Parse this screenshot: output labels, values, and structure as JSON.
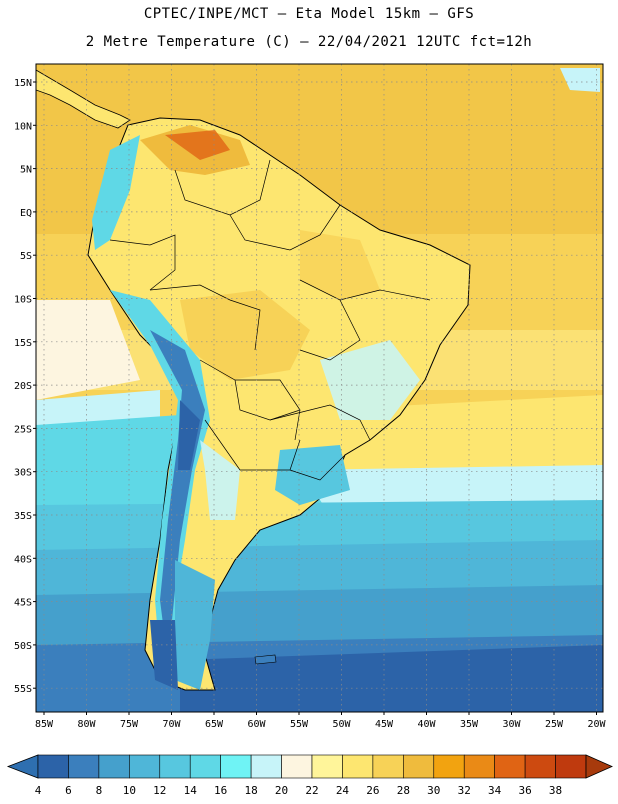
{
  "header": {
    "line1": "CPTEC/INPE/MCT –  Eta Model 15km – GFS",
    "line2": "2 Metre Temperature (C) – 22/04/2021 12UTC fct=12h"
  },
  "axes": {
    "lat_labels": [
      "15N",
      "10N",
      "5N",
      "EQ",
      "5S",
      "10S",
      "15S",
      "20S",
      "25S",
      "30S",
      "35S",
      "40S",
      "45S",
      "50S",
      "55S"
    ],
    "lon_labels": [
      "85W",
      "80W",
      "75W",
      "70W",
      "65W",
      "60W",
      "55W",
      "50W",
      "45W",
      "40W",
      "35W",
      "30W",
      "25W",
      "20W"
    ]
  },
  "colorbar": {
    "ticks": [
      "4",
      "6",
      "8",
      "10",
      "12",
      "14",
      "16",
      "18",
      "20",
      "22",
      "24",
      "26",
      "28",
      "30",
      "32",
      "34",
      "36",
      "38"
    ],
    "colors": [
      "#2c63a8",
      "#3b7fbd",
      "#45a0cc",
      "#4fb6d8",
      "#57c7df",
      "#5fd8e6",
      "#6ff3f5",
      "#c7f4f9",
      "#fdf5e0",
      "#fff59a",
      "#fde670",
      "#f7d257",
      "#efbb3d",
      "#f2a310",
      "#ea8a16",
      "#e06414",
      "#cd4a10",
      "#bf3a0e"
    ],
    "left_arrow_color": "#2e6fb0",
    "right_arrow_color": "#a73a0c"
  },
  "palette": {
    "ocean_north": "#f7d257",
    "ocean_far_north": "#efbb3d",
    "land_warm": "#fde670",
    "land_hot": "#f2a310",
    "andes": "#5fd8e6",
    "andes_cold": "#3b7fbd",
    "south_cold": "#2c63a8"
  }
}
